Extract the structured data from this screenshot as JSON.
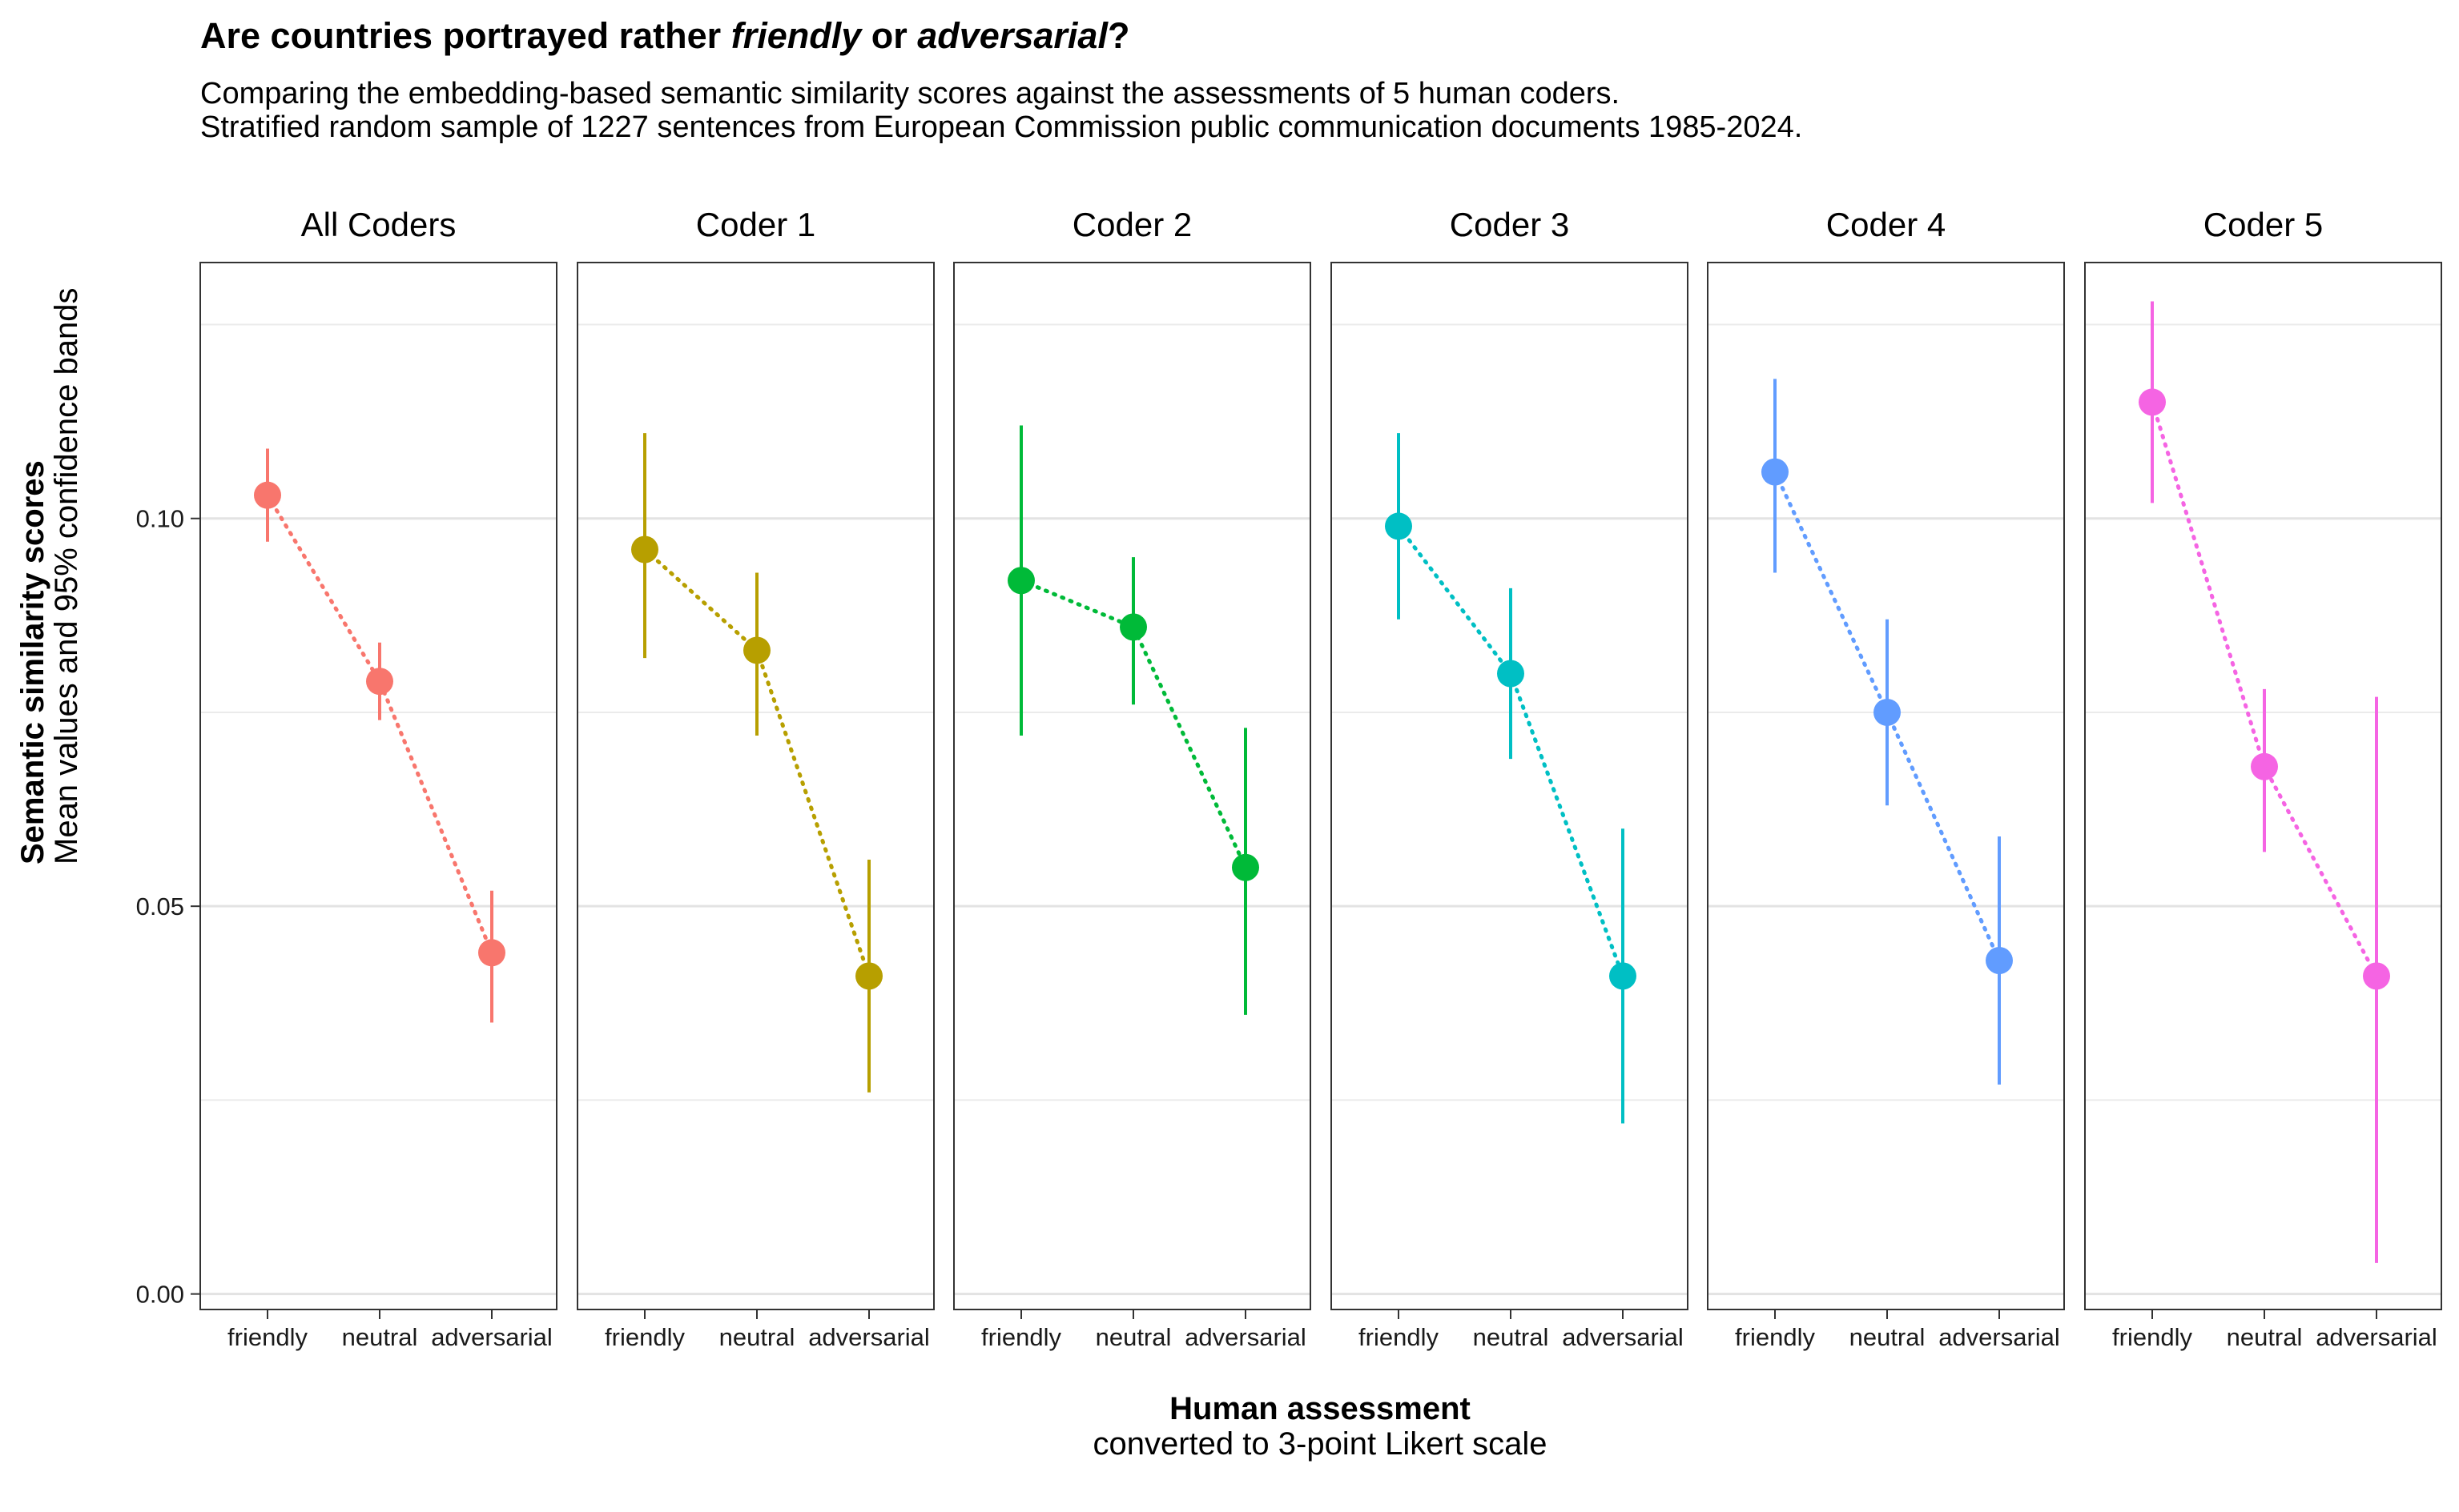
{
  "chart_data": {
    "type": "scatter",
    "title": {
      "prefix": "Are countries portrayed rather ",
      "em1": "friendly",
      "mid": " or ",
      "em2": "adversarial",
      "suffix": "?"
    },
    "subtitle_lines": [
      "Comparing the embedding-based semantic similarity scores against the assessments of 5 human coders.",
      "Stratified random sample of 1227 sentences from European Commission public communication documents 1985-2024."
    ],
    "xlabel": "Human assessment",
    "xlabel_sub": "converted to 3-point Likert scale",
    "ylabel": "Semantic similarity scores",
    "ylabel_sub": "Mean values and 95% confidence bands",
    "categories": [
      "friendly",
      "neutral",
      "adversarial"
    ],
    "ylim": [
      -0.002,
      0.133
    ],
    "y_ticks": [
      0.0,
      0.05,
      0.1
    ],
    "y_tick_labels": [
      "0.00",
      "0.05",
      "0.10"
    ],
    "y_minor_ticks": [
      0.025,
      0.075,
      0.125
    ],
    "grid": true,
    "panels": [
      {
        "name": "All Coders",
        "color": "#F8766D",
        "mean": [
          0.103,
          0.079,
          0.044
        ],
        "lower": [
          0.097,
          0.074,
          0.035
        ],
        "upper": [
          0.109,
          0.084,
          0.052
        ]
      },
      {
        "name": "Coder 1",
        "color": "#B79F00",
        "mean": [
          0.096,
          0.083,
          0.041
        ],
        "lower": [
          0.082,
          0.072,
          0.026
        ],
        "upper": [
          0.111,
          0.093,
          0.056
        ]
      },
      {
        "name": "Coder 2",
        "color": "#00BA38",
        "mean": [
          0.092,
          0.086,
          0.055
        ],
        "lower": [
          0.072,
          0.076,
          0.036
        ],
        "upper": [
          0.112,
          0.095,
          0.073
        ]
      },
      {
        "name": "Coder 3",
        "color": "#00BFC4",
        "mean": [
          0.099,
          0.08,
          0.041
        ],
        "lower": [
          0.087,
          0.069,
          0.022
        ],
        "upper": [
          0.111,
          0.091,
          0.06
        ]
      },
      {
        "name": "Coder 4",
        "color": "#619CFF",
        "mean": [
          0.106,
          0.075,
          0.043
        ],
        "lower": [
          0.093,
          0.063,
          0.027
        ],
        "upper": [
          0.118,
          0.087,
          0.059
        ]
      },
      {
        "name": "Coder 5",
        "color": "#F564E3",
        "mean": [
          0.115,
          0.068,
          0.041
        ],
        "lower": [
          0.102,
          0.057,
          0.004
        ],
        "upper": [
          0.128,
          0.078,
          0.077
        ]
      }
    ]
  }
}
